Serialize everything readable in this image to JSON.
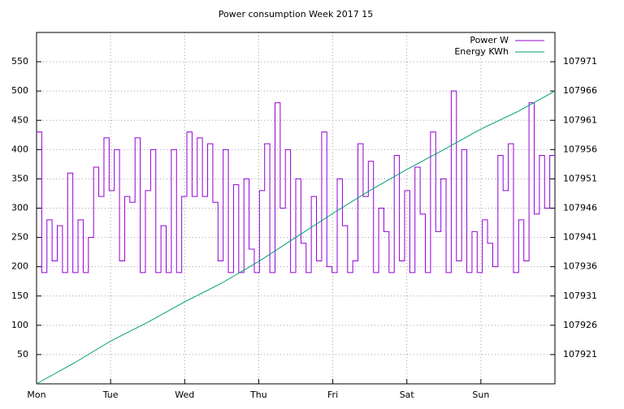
{
  "chart_data": {
    "type": "line",
    "title": "Power consumption Week 2017 15",
    "xlim": [
      0,
      7
    ],
    "xticks": [
      {
        "value": 0,
        "label": "Mon"
      },
      {
        "value": 1,
        "label": "Tue"
      },
      {
        "value": 2,
        "label": "Wed"
      },
      {
        "value": 3,
        "label": "Thu"
      },
      {
        "value": 4,
        "label": "Fri"
      },
      {
        "value": 5,
        "label": "Sat"
      },
      {
        "value": 6,
        "label": "Sun"
      }
    ],
    "ylim": [
      0,
      600
    ],
    "yticks": [
      50,
      100,
      150,
      200,
      250,
      300,
      350,
      400,
      450,
      500,
      550
    ],
    "y2lim": [
      107916,
      107976
    ],
    "y2ticks": [
      107921,
      107926,
      107931,
      107936,
      107941,
      107946,
      107951,
      107956,
      107961,
      107966,
      107971
    ],
    "grid": true,
    "legend": "top-right",
    "series": [
      {
        "name": "Power W",
        "color": "#9400d3",
        "step": true,
        "x": [
          0,
          0.07,
          0.14,
          0.21,
          0.28,
          0.35,
          0.42,
          0.49,
          0.56,
          0.63,
          0.7,
          0.77,
          0.84,
          0.91,
          0.98,
          1.05,
          1.12,
          1.19,
          1.26,
          1.33,
          1.4,
          1.47,
          1.54,
          1.61,
          1.68,
          1.75,
          1.82,
          1.89,
          1.96,
          2.03,
          2.1,
          2.17,
          2.24,
          2.31,
          2.38,
          2.45,
          2.52,
          2.59,
          2.66,
          2.73,
          2.8,
          2.87,
          2.94,
          3.01,
          3.08,
          3.15,
          3.22,
          3.29,
          3.36,
          3.43,
          3.5,
          3.57,
          3.64,
          3.71,
          3.78,
          3.85,
          3.92,
          3.99,
          4.06,
          4.13,
          4.2,
          4.27,
          4.34,
          4.41,
          4.48,
          4.55,
          4.62,
          4.69,
          4.76,
          4.83,
          4.9,
          4.97,
          5.04,
          5.11,
          5.18,
          5.25,
          5.32,
          5.39,
          5.46,
          5.53,
          5.6,
          5.67,
          5.74,
          5.81,
          5.88,
          5.95,
          6.02,
          6.09,
          6.16,
          6.23,
          6.3,
          6.37,
          6.44,
          6.51,
          6.58,
          6.65,
          6.72,
          6.79,
          6.86,
          6.93
        ],
        "values": [
          430,
          190,
          280,
          210,
          270,
          190,
          360,
          190,
          280,
          190,
          250,
          370,
          320,
          420,
          330,
          400,
          210,
          320,
          310,
          420,
          190,
          330,
          400,
          190,
          270,
          190,
          400,
          190,
          320,
          430,
          320,
          420,
          320,
          410,
          310,
          210,
          400,
          190,
          340,
          190,
          350,
          230,
          190,
          330,
          410,
          190,
          480,
          300,
          400,
          190,
          350,
          240,
          190,
          320,
          210,
          430,
          200,
          190,
          350,
          270,
          190,
          210,
          410,
          320,
          380,
          190,
          300,
          260,
          190,
          390,
          210,
          330,
          190,
          370,
          290,
          190,
          430,
          260,
          350,
          190,
          500,
          210,
          400,
          190,
          260,
          190,
          280,
          240,
          200,
          390,
          330,
          410,
          190,
          280,
          210,
          480,
          290,
          390,
          300,
          390
        ]
      },
      {
        "name": "Energy KWh",
        "color": "#009e73",
        "axis": "y2",
        "x": [
          0,
          0.5,
          1,
          1.5,
          2,
          2.5,
          3,
          3.5,
          4,
          4.5,
          5,
          5.5,
          6,
          6.5,
          7
        ],
        "values": [
          107916,
          107919.5,
          107923.3,
          107926.5,
          107930,
          107933.2,
          107936.9,
          107941,
          107945.1,
          107949,
          107952.6,
          107956,
          107959.5,
          107962.5,
          107966
        ]
      }
    ]
  }
}
